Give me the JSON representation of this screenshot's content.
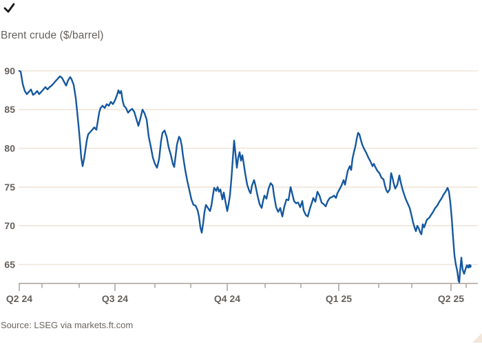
{
  "header": {
    "title": "Brent crude ($/barrel)"
  },
  "footer": {
    "source": "Source: LSEG via markets.ft.com"
  },
  "corner_mark": "checkmark",
  "colors": {
    "line": "#14589e",
    "grid": "#f0e4d8",
    "axis": "#aaa198",
    "text": "#66605b",
    "mark": "#1b1916",
    "corner_triangle": "#f2e5da"
  },
  "chart_data": {
    "type": "line",
    "title": "Brent crude ($/barrel)",
    "ylabel": "$/barrel",
    "series_name": "Brent crude",
    "grid": "horizontal",
    "legend": "none",
    "y_ticks": [
      90,
      85,
      80,
      75,
      70,
      65
    ],
    "ylim": [
      62.5,
      90.5
    ],
    "x_axis_note": "Apr 2024 to Apr 2025; minor ticks monthly, major ticks quarterly",
    "x_domain": [
      0,
      666
    ],
    "x_ticks": [
      {
        "u": 0,
        "label": "Q2 24",
        "major": true
      },
      {
        "u": 33,
        "label": "",
        "major": false
      },
      {
        "u": 87,
        "label": "",
        "major": false
      },
      {
        "u": 139,
        "label": "Q3 24",
        "major": true
      },
      {
        "u": 197,
        "label": "",
        "major": false
      },
      {
        "u": 249,
        "label": "",
        "major": false
      },
      {
        "u": 302,
        "label": "Q4 24",
        "major": true
      },
      {
        "u": 357,
        "label": "",
        "major": false
      },
      {
        "u": 409,
        "label": "",
        "major": false
      },
      {
        "u": 464,
        "label": "Q1 25",
        "major": true
      },
      {
        "u": 522,
        "label": "",
        "major": false
      },
      {
        "u": 570,
        "label": "",
        "major": false
      },
      {
        "u": 627,
        "label": "Q2 25",
        "major": true
      },
      {
        "u": 649,
        "label": "",
        "major": false
      }
    ],
    "points": [
      [
        0,
        90
      ],
      [
        2,
        89.9
      ],
      [
        5,
        88.3
      ],
      [
        8,
        87.4
      ],
      [
        11,
        87
      ],
      [
        14,
        87.3
      ],
      [
        17,
        87.6
      ],
      [
        20,
        86.9
      ],
      [
        23,
        87.1
      ],
      [
        26,
        87.4
      ],
      [
        29,
        87
      ],
      [
        32,
        87.3
      ],
      [
        35,
        87.6
      ],
      [
        38,
        87.9
      ],
      [
        41,
        87.6
      ],
      [
        44,
        87.9
      ],
      [
        47,
        88.1
      ],
      [
        50,
        88.4
      ],
      [
        53,
        88.7
      ],
      [
        56,
        89
      ],
      [
        59,
        89.3
      ],
      [
        62,
        89.1
      ],
      [
        65,
        88.6
      ],
      [
        68,
        88.1
      ],
      [
        71,
        88.8
      ],
      [
        74,
        89.2
      ],
      [
        76,
        88.9
      ],
      [
        79,
        88.2
      ],
      [
        82,
        86.5
      ],
      [
        84,
        84.8
      ],
      [
        86,
        83
      ],
      [
        88,
        81
      ],
      [
        90,
        78.8
      ],
      [
        92,
        77.7
      ],
      [
        94,
        78.6
      ],
      [
        96,
        79.8
      ],
      [
        98,
        81
      ],
      [
        100,
        81.8
      ],
      [
        103,
        82.1
      ],
      [
        106,
        82.4
      ],
      [
        109,
        82.7
      ],
      [
        112,
        82.4
      ],
      [
        114,
        83.5
      ],
      [
        116,
        84.6
      ],
      [
        118,
        85.2
      ],
      [
        121,
        85.5
      ],
      [
        124,
        85.2
      ],
      [
        127,
        85.7
      ],
      [
        130,
        85.5
      ],
      [
        133,
        86
      ],
      [
        136,
        85.7
      ],
      [
        139,
        86.2
      ],
      [
        142,
        86.9
      ],
      [
        144,
        87.5
      ],
      [
        146,
        87.1
      ],
      [
        148,
        87.4
      ],
      [
        150,
        86.2
      ],
      [
        152,
        85.5
      ],
      [
        155,
        85.2
      ],
      [
        158,
        84.6
      ],
      [
        161,
        84.9
      ],
      [
        164,
        85.1
      ],
      [
        167,
        84.7
      ],
      [
        170,
        83.8
      ],
      [
        173,
        82.9
      ],
      [
        176,
        83.9
      ],
      [
        179,
        85
      ],
      [
        182,
        84.5
      ],
      [
        185,
        83.7
      ],
      [
        188,
        81.5
      ],
      [
        191,
        80.2
      ],
      [
        194,
        78.8
      ],
      [
        197,
        78
      ],
      [
        200,
        77.5
      ],
      [
        203,
        78.6
      ],
      [
        206,
        81
      ],
      [
        208,
        82
      ],
      [
        211,
        82.3
      ],
      [
        214,
        81.5
      ],
      [
        217,
        80.1
      ],
      [
        220,
        79.2
      ],
      [
        223,
        78
      ],
      [
        225,
        77.6
      ],
      [
        227,
        79
      ],
      [
        229,
        80.5
      ],
      [
        232,
        81.5
      ],
      [
        234,
        81.2
      ],
      [
        236,
        80.3
      ],
      [
        238,
        78.9
      ],
      [
        241,
        77.2
      ],
      [
        244,
        75.8
      ],
      [
        247,
        74.6
      ],
      [
        250,
        73.4
      ],
      [
        253,
        72.7
      ],
      [
        256,
        72.6
      ],
      [
        259,
        72
      ],
      [
        261,
        71.2
      ],
      [
        263,
        69.8
      ],
      [
        265,
        69.1
      ],
      [
        267,
        70.3
      ],
      [
        269,
        71.8
      ],
      [
        271,
        72.7
      ],
      [
        274,
        72.3
      ],
      [
        277,
        71.9
      ],
      [
        279,
        72.6
      ],
      [
        281,
        73.8
      ],
      [
        283,
        74.9
      ],
      [
        286,
        74.5
      ],
      [
        288,
        75
      ],
      [
        290,
        74.4
      ],
      [
        292,
        74.7
      ],
      [
        295,
        73.4
      ],
      [
        297,
        74.3
      ],
      [
        299,
        73.3
      ],
      [
        302,
        71.9
      ],
      [
        304,
        72.8
      ],
      [
        306,
        74
      ],
      [
        308,
        76
      ],
      [
        310,
        78.5
      ],
      [
        312,
        81
      ],
      [
        314,
        79.3
      ],
      [
        316,
        77.5
      ],
      [
        318,
        78.8
      ],
      [
        320,
        79.5
      ],
      [
        322,
        78.4
      ],
      [
        324,
        79.1
      ],
      [
        326,
        78
      ],
      [
        328,
        76.8
      ],
      [
        331,
        75.3
      ],
      [
        334,
        74.5
      ],
      [
        336,
        74.2
      ],
      [
        338,
        75.2
      ],
      [
        341,
        75.9
      ],
      [
        343,
        75.2
      ],
      [
        346,
        73.9
      ],
      [
        349,
        72.8
      ],
      [
        352,
        72.3
      ],
      [
        354,
        73.2
      ],
      [
        356,
        73.9
      ],
      [
        359,
        73.5
      ],
      [
        362,
        74.8
      ],
      [
        365,
        75.5
      ],
      [
        368,
        75.2
      ],
      [
        370,
        73.9
      ],
      [
        373,
        72.4
      ],
      [
        376,
        71.8
      ],
      [
        379,
        72.3
      ],
      [
        382,
        71.2
      ],
      [
        385,
        72.5
      ],
      [
        388,
        73.4
      ],
      [
        391,
        73.3
      ],
      [
        394,
        75
      ],
      [
        396,
        74.3
      ],
      [
        399,
        73.2
      ],
      [
        402,
        72.9
      ],
      [
        405,
        73
      ],
      [
        408,
        72.4
      ],
      [
        411,
        73.2
      ],
      [
        413,
        72
      ],
      [
        416,
        71.4
      ],
      [
        419,
        71.2
      ],
      [
        422,
        72.2
      ],
      [
        425,
        73
      ],
      [
        427,
        73.6
      ],
      [
        430,
        73.1
      ],
      [
        433,
        74.4
      ],
      [
        436,
        73.9
      ],
      [
        439,
        73
      ],
      [
        442,
        72.8
      ],
      [
        445,
        72.5
      ],
      [
        448,
        73.2
      ],
      [
        451,
        73.6
      ],
      [
        454,
        73.7
      ],
      [
        457,
        73.9
      ],
      [
        460,
        73.6
      ],
      [
        462,
        74.2
      ],
      [
        465,
        74.7
      ],
      [
        468,
        75.2
      ],
      [
        471,
        75.9
      ],
      [
        473,
        75.3
      ],
      [
        475,
        76.2
      ],
      [
        477,
        77.1
      ],
      [
        480,
        77.7
      ],
      [
        482,
        77.2
      ],
      [
        484,
        78.7
      ],
      [
        486,
        79.5
      ],
      [
        488,
        80.2
      ],
      [
        490,
        81.2
      ],
      [
        492,
        82
      ],
      [
        494,
        81.8
      ],
      [
        496,
        81.1
      ],
      [
        498,
        80.5
      ],
      [
        501,
        79.9
      ],
      [
        504,
        79.4
      ],
      [
        507,
        78.8
      ],
      [
        510,
        78.3
      ],
      [
        513,
        77.7
      ],
      [
        515,
        78
      ],
      [
        517,
        77.6
      ],
      [
        520,
        77.1
      ],
      [
        523,
        76.8
      ],
      [
        526,
        76.2
      ],
      [
        529,
        76
      ],
      [
        531,
        75.2
      ],
      [
        533,
        74.6
      ],
      [
        535,
        74.3
      ],
      [
        538,
        74.7
      ],
      [
        540,
        76.8
      ],
      [
        542,
        76.2
      ],
      [
        544,
        75.4
      ],
      [
        546,
        74.8
      ],
      [
        549,
        75.3
      ],
      [
        552,
        76.5
      ],
      [
        554,
        75.6
      ],
      [
        556,
        74.9
      ],
      [
        558,
        74.3
      ],
      [
        561,
        73.5
      ],
      [
        564,
        72.9
      ],
      [
        567,
        72.3
      ],
      [
        570,
        71.2
      ],
      [
        572,
        70.4
      ],
      [
        574,
        69.8
      ],
      [
        576,
        69.3
      ],
      [
        578,
        70
      ],
      [
        580,
        69.7
      ],
      [
        582,
        69.2
      ],
      [
        584,
        68.9
      ],
      [
        586,
        70.2
      ],
      [
        588,
        69.8
      ],
      [
        590,
        70.3
      ],
      [
        592,
        70.8
      ],
      [
        595,
        71
      ],
      [
        598,
        71.4
      ],
      [
        601,
        71.8
      ],
      [
        604,
        72.3
      ],
      [
        607,
        72.6
      ],
      [
        610,
        73.1
      ],
      [
        613,
        73.5
      ],
      [
        616,
        74
      ],
      [
        619,
        74.4
      ],
      [
        622,
        74.9
      ],
      [
        624,
        74.4
      ],
      [
        626,
        73
      ],
      [
        628,
        71
      ],
      [
        630,
        68.5
      ],
      [
        632,
        66.2
      ],
      [
        634,
        65
      ],
      [
        636,
        64.2
      ],
      [
        638,
        62.9
      ],
      [
        639,
        62.7
      ],
      [
        640,
        64
      ],
      [
        641,
        64.9
      ],
      [
        642,
        65.9
      ],
      [
        643,
        65
      ],
      [
        644,
        64.3
      ],
      [
        646,
        63.8
      ],
      [
        648,
        64.4
      ],
      [
        650,
        64.9
      ],
      [
        652,
        64.6
      ],
      [
        654,
        64.8
      ]
    ]
  }
}
